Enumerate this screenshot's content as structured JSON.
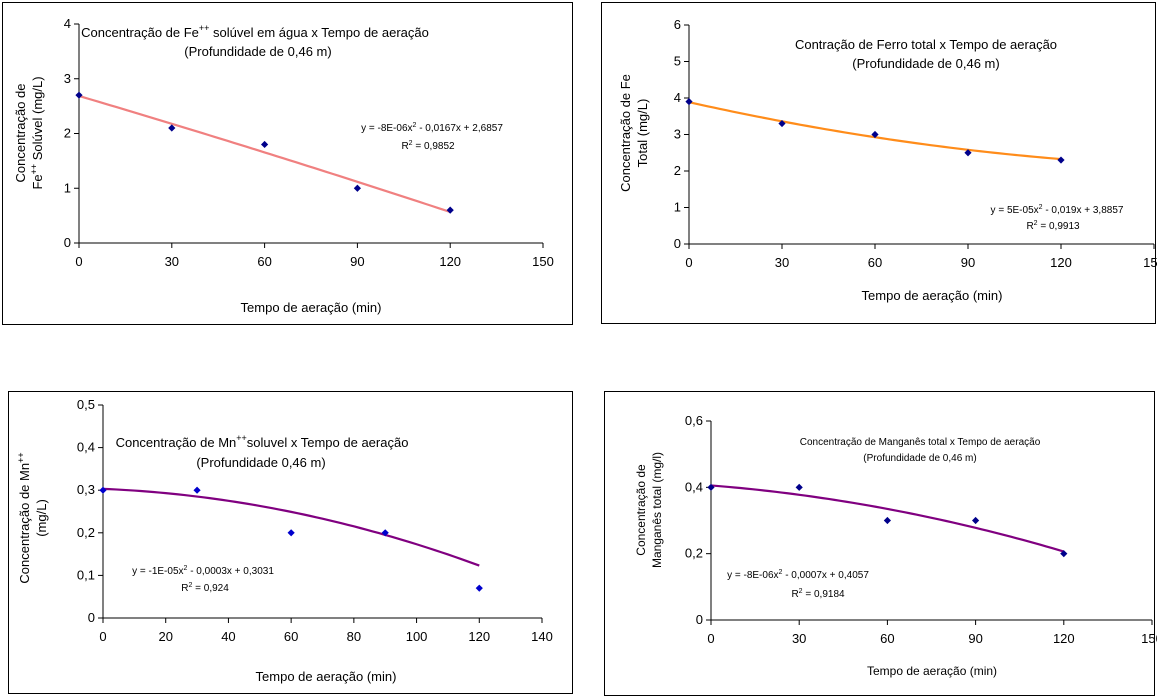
{
  "chart_data": [
    {
      "type": "scatter",
      "title_prefix": "Concentração de Fe",
      "title_sup": "++",
      "title_suffix": " solúvel em água x Tempo de aeração",
      "subtitle": "(Profundidade de 0,46 m)",
      "xlabel": "Tempo de aeração (min)",
      "ylabel_line1": "Concentração de",
      "ylabel_line2_prefix": "Fe",
      "ylabel_line2_sup": "++",
      "ylabel_line2_suffix": " Solúvel (mg/L)",
      "xlim": [
        0,
        150
      ],
      "ylim": [
        0,
        4
      ],
      "x_ticks": [
        "0",
        "30",
        "60",
        "90",
        "120",
        "150"
      ],
      "y_ticks": [
        "0",
        "1",
        "2",
        "3",
        "4"
      ],
      "x": [
        0,
        30,
        60,
        90,
        120
      ],
      "y": [
        2.7,
        2.1,
        1.8,
        1.0,
        0.6
      ],
      "trendline": {
        "a": -8e-06,
        "b": -0.0167,
        "c": 2.6857,
        "color": "#f08080"
      },
      "equation_prefix": "y = -8E-06x",
      "equation_suffix": " - 0,0167x + 2,6857",
      "r2_value": " = 0,9852",
      "marker_color": "#00008b"
    },
    {
      "type": "scatter",
      "title": "Contração de Ferro total x Tempo de aeração",
      "subtitle": "(Profundidade de 0,46 m)",
      "xlabel": "Tempo de aeração (min)",
      "ylabel_line1": "Concentração de Fe",
      "ylabel_line2": "Total (mg/L)",
      "xlim": [
        0,
        150
      ],
      "ylim": [
        0,
        6
      ],
      "x_ticks": [
        "0",
        "30",
        "60",
        "90",
        "120",
        "150"
      ],
      "y_ticks": [
        "0",
        "1",
        "2",
        "3",
        "4",
        "5",
        "6"
      ],
      "x": [
        0,
        30,
        60,
        90,
        120
      ],
      "y": [
        3.9,
        3.3,
        3.0,
        2.5,
        2.3
      ],
      "trendline": {
        "a": 5e-05,
        "b": -0.019,
        "c": 3.8857,
        "color": "#ff8c1a"
      },
      "equation_prefix": "y = 5E-05x",
      "equation_suffix": " - 0,019x + 3,8857",
      "r2_value": " = 0,9913",
      "marker_color": "#00008b"
    },
    {
      "type": "scatter",
      "title_prefix": "Concentração de Mn",
      "title_sup": "++",
      "title_suffix": "soluvel x Tempo de aeração",
      "subtitle": "(Profundidade 0,46 m)",
      "xlabel": "Tempo de aeração (min)",
      "ylabel_line1_prefix": "Concentração de Mn",
      "ylabel_line1_sup": "++",
      "ylabel_line2": "(mg/L)",
      "xlim": [
        0,
        140
      ],
      "ylim": [
        0,
        0.5
      ],
      "x_ticks": [
        "0",
        "20",
        "40",
        "60",
        "80",
        "100",
        "120",
        "140"
      ],
      "y_ticks": [
        "0",
        "0,1",
        "0,2",
        "0,3",
        "0,4",
        "0,5"
      ],
      "x": [
        0,
        30,
        60,
        90,
        120
      ],
      "y": [
        0.3,
        0.3,
        0.2,
        0.2,
        0.07
      ],
      "trendline": {
        "a": -1e-05,
        "b": -0.0003,
        "c": 0.3031,
        "color": "#800080"
      },
      "equation_prefix": "y = -1E-05x",
      "equation_suffix": " - 0,0003x + 0,3031",
      "r2_value": " = 0,924",
      "marker_color": "#0000cd"
    },
    {
      "type": "scatter",
      "title": "Concentração de Manganês total x Tempo de aeração",
      "subtitle": "(Profundidade de 0,46 m)",
      "xlabel": "Tempo de aeração (min)",
      "ylabel_line1": "Concentração de",
      "ylabel_line2": "Manganês total (mg/l)",
      "xlim": [
        0,
        150
      ],
      "ylim": [
        0,
        0.6
      ],
      "x_ticks": [
        "0",
        "30",
        "60",
        "90",
        "120",
        "150"
      ],
      "y_ticks": [
        "0",
        "0,2",
        "0,4",
        "0,6"
      ],
      "x": [
        0,
        30,
        60,
        90,
        120
      ],
      "y": [
        0.4,
        0.4,
        0.3,
        0.3,
        0.2
      ],
      "trendline": {
        "a": -8e-06,
        "b": -0.0007,
        "c": 0.4057,
        "color": "#800080"
      },
      "equation_prefix": "y = -8E-06x",
      "equation_suffix": " - 0,0007x + 0,4057",
      "r2_value": " = 0,9184",
      "marker_color": "#00008b"
    }
  ],
  "shared": {
    "sup_two": "2",
    "r_letter": "R"
  }
}
